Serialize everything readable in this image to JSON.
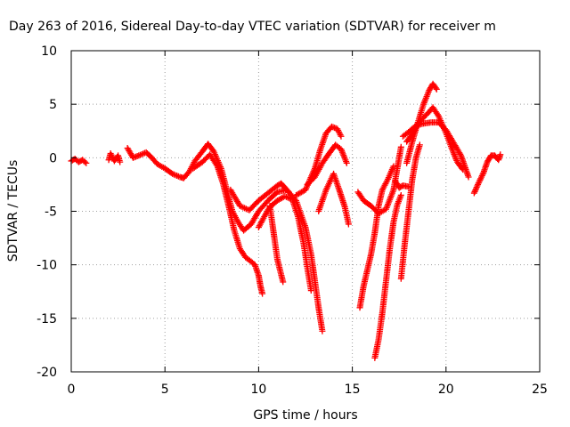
{
  "chart_data": {
    "type": "scatter",
    "title": "Day 263 of 2016, Sidereal Day-to-day VTEC variation (SDTVAR) for receiver m",
    "xlabel": "GPS time / hours",
    "ylabel": "SDTVAR / TECUs",
    "xlim": [
      0,
      25
    ],
    "ylim": [
      -20,
      10
    ],
    "xticks": [
      0,
      5,
      10,
      15,
      20,
      25
    ],
    "yticks": [
      -20,
      -15,
      -10,
      -5,
      0,
      5,
      10
    ],
    "grid": true,
    "marker": "+",
    "color": "#ff0000",
    "series": [
      {
        "values": [
          [
            0.0,
            -0.3
          ],
          [
            0.2,
            -0.1
          ],
          [
            0.4,
            -0.4
          ],
          [
            0.6,
            -0.2
          ],
          [
            0.8,
            -0.5
          ]
        ]
      },
      {
        "values": [
          [
            2.0,
            -0.2
          ],
          [
            2.1,
            0.4
          ],
          [
            2.3,
            -0.3
          ],
          [
            2.5,
            0.2
          ],
          [
            2.6,
            -0.4
          ]
        ]
      },
      {
        "values": [
          [
            3.0,
            0.9
          ],
          [
            3.3,
            0.0
          ],
          [
            3.6,
            0.2
          ],
          [
            4.0,
            0.5
          ],
          [
            4.3,
            0.0
          ],
          [
            4.6,
            -0.6
          ],
          [
            5.0,
            -1.0
          ],
          [
            5.4,
            -1.5
          ],
          [
            5.8,
            -1.8
          ],
          [
            6.0,
            -1.9
          ],
          [
            6.3,
            -1.3
          ],
          [
            6.6,
            -0.3
          ],
          [
            7.0,
            0.6
          ],
          [
            7.3,
            1.3
          ],
          [
            7.6,
            0.6
          ],
          [
            8.0,
            -1.0
          ],
          [
            8.3,
            -3.0
          ],
          [
            8.6,
            -5.0
          ],
          [
            8.9,
            -6.0
          ],
          [
            9.2,
            -6.8
          ],
          [
            9.6,
            -6.2
          ],
          [
            10.0,
            -5.0
          ],
          [
            10.5,
            -4.0
          ],
          [
            11.0,
            -3.2
          ],
          [
            11.5,
            -3.0
          ],
          [
            12.0,
            -4.0
          ],
          [
            12.5,
            -6.5
          ],
          [
            12.8,
            -9.0
          ],
          [
            13.0,
            -11.5
          ],
          [
            13.2,
            -14.0
          ],
          [
            13.4,
            -16.2
          ]
        ]
      },
      {
        "values": [
          [
            6.5,
            -1.0
          ],
          [
            7.0,
            -0.4
          ],
          [
            7.4,
            0.3
          ],
          [
            7.8,
            -0.8
          ],
          [
            8.1,
            -2.4
          ],
          [
            8.4,
            -4.5
          ],
          [
            8.7,
            -6.8
          ],
          [
            9.0,
            -8.5
          ],
          [
            9.3,
            -9.3
          ],
          [
            9.6,
            -9.7
          ],
          [
            9.8,
            -10.0
          ],
          [
            10.0,
            -11.0
          ],
          [
            10.1,
            -12.0
          ],
          [
            10.2,
            -12.7
          ]
        ]
      },
      {
        "values": [
          [
            10.0,
            -6.5
          ],
          [
            10.3,
            -5.5
          ],
          [
            10.6,
            -4.6
          ],
          [
            11.0,
            -4.0
          ],
          [
            11.4,
            -3.6
          ],
          [
            11.8,
            -3.9
          ],
          [
            12.1,
            -5.5
          ],
          [
            12.4,
            -8.0
          ],
          [
            12.6,
            -10.3
          ],
          [
            12.8,
            -12.4
          ]
        ]
      },
      {
        "values": [
          [
            8.5,
            -3.0
          ],
          [
            9.0,
            -4.5
          ],
          [
            9.5,
            -4.9
          ],
          [
            10.0,
            -4.0
          ],
          [
            10.5,
            -3.3
          ],
          [
            11.0,
            -2.6
          ],
          [
            11.2,
            -2.4
          ],
          [
            11.4,
            -2.8
          ],
          [
            11.6,
            -3.2
          ]
        ]
      },
      {
        "values": [
          [
            10.6,
            -4.5
          ],
          [
            10.8,
            -7.0
          ],
          [
            11.0,
            -9.5
          ],
          [
            11.3,
            -11.6
          ]
        ]
      },
      {
        "values": [
          [
            12.0,
            -3.5
          ],
          [
            12.5,
            -3.0
          ],
          [
            13.0,
            -1.0
          ],
          [
            13.3,
            0.8
          ],
          [
            13.6,
            2.3
          ],
          [
            13.9,
            2.9
          ],
          [
            14.2,
            2.7
          ],
          [
            14.4,
            2.0
          ]
        ]
      },
      {
        "values": [
          [
            12.6,
            -2.5
          ],
          [
            13.0,
            -1.8
          ],
          [
            13.4,
            -0.5
          ],
          [
            13.8,
            0.5
          ],
          [
            14.1,
            1.2
          ],
          [
            14.4,
            0.8
          ],
          [
            14.7,
            -0.5
          ]
        ]
      },
      {
        "values": [
          [
            13.2,
            -5.0
          ],
          [
            13.6,
            -3.0
          ],
          [
            14.0,
            -1.5
          ],
          [
            14.3,
            -3.0
          ],
          [
            14.6,
            -4.6
          ],
          [
            14.8,
            -6.2
          ]
        ]
      },
      {
        "values": [
          [
            15.3,
            -3.2
          ],
          [
            15.6,
            -4.0
          ],
          [
            16.0,
            -4.5
          ],
          [
            16.4,
            -5.2
          ],
          [
            16.8,
            -4.8
          ],
          [
            17.2,
            -3.0
          ],
          [
            17.4,
            -1.0
          ],
          [
            17.6,
            1.0
          ]
        ]
      },
      {
        "values": [
          [
            15.4,
            -14.0
          ],
          [
            15.6,
            -12.0
          ],
          [
            15.8,
            -10.5
          ],
          [
            16.0,
            -9.0
          ],
          [
            16.2,
            -7.0
          ],
          [
            16.4,
            -4.5
          ],
          [
            16.6,
            -3.0
          ],
          [
            16.9,
            -2.0
          ],
          [
            17.2,
            -0.8
          ]
        ]
      },
      {
        "values": [
          [
            16.2,
            -18.7
          ],
          [
            16.4,
            -17.0
          ],
          [
            16.6,
            -14.5
          ],
          [
            16.8,
            -11.5
          ],
          [
            17.0,
            -8.5
          ],
          [
            17.2,
            -6.0
          ],
          [
            17.4,
            -4.4
          ],
          [
            17.6,
            -3.5
          ]
        ]
      },
      {
        "values": [
          [
            17.6,
            -11.3
          ],
          [
            17.8,
            -8.0
          ],
          [
            18.0,
            -5.0
          ],
          [
            18.2,
            -2.0
          ],
          [
            18.4,
            0.0
          ],
          [
            18.6,
            1.2
          ]
        ]
      },
      {
        "values": [
          [
            17.7,
            2.0
          ],
          [
            18.0,
            2.4
          ],
          [
            18.4,
            3.0
          ],
          [
            18.8,
            3.2
          ],
          [
            19.2,
            3.3
          ],
          [
            19.6,
            3.3
          ],
          [
            20.0,
            2.6
          ],
          [
            20.4,
            1.4
          ],
          [
            20.8,
            0.2
          ],
          [
            21.0,
            -0.8
          ],
          [
            21.2,
            -1.8
          ]
        ]
      },
      {
        "values": [
          [
            17.9,
            1.5
          ],
          [
            18.2,
            2.2
          ],
          [
            18.6,
            3.4
          ],
          [
            19.0,
            4.1
          ],
          [
            19.3,
            4.7
          ],
          [
            19.6,
            3.9
          ],
          [
            20.0,
            2.3
          ],
          [
            20.3,
            0.9
          ],
          [
            20.6,
            -0.4
          ],
          [
            20.9,
            -1.1
          ]
        ]
      },
      {
        "values": [
          [
            17.9,
            -0.5
          ],
          [
            18.2,
            1.5
          ],
          [
            18.5,
            3.3
          ],
          [
            18.8,
            5.0
          ],
          [
            19.1,
            6.3
          ],
          [
            19.3,
            6.9
          ],
          [
            19.5,
            6.4
          ]
        ]
      },
      {
        "values": [
          [
            17.3,
            -2.2
          ],
          [
            17.5,
            -2.8
          ],
          [
            17.7,
            -2.6
          ],
          [
            18.0,
            -2.7
          ]
        ]
      },
      {
        "values": [
          [
            21.5,
            -3.3
          ],
          [
            21.7,
            -2.5
          ],
          [
            22.0,
            -1.4
          ],
          [
            22.2,
            -0.4
          ],
          [
            22.4,
            0.2
          ],
          [
            22.6,
            0.2
          ],
          [
            22.8,
            -0.2
          ],
          [
            22.9,
            0.3
          ]
        ]
      }
    ]
  }
}
